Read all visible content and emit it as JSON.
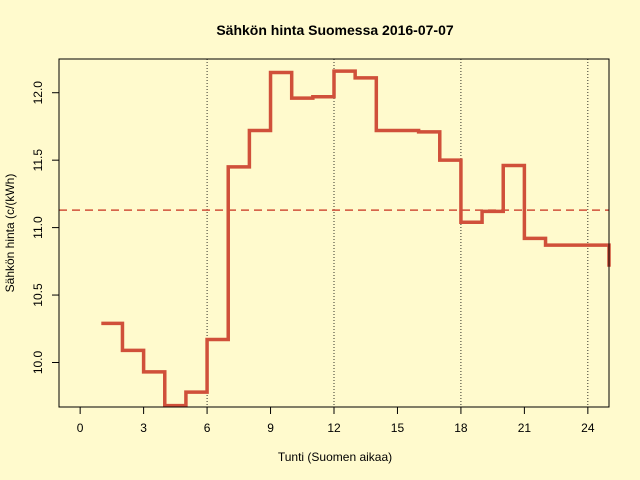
{
  "chart_data": {
    "type": "line",
    "style": "step",
    "title": "Sähkön hinta Suomessa 2016-07-07",
    "xlabel": "Tunti (Suomen aikaa)",
    "ylabel": "Sähkön hinta (c/(kWh)",
    "xlim": [
      -1,
      25
    ],
    "ylim": [
      9.67,
      12.25
    ],
    "xticks": [
      0,
      3,
      6,
      9,
      12,
      15,
      18,
      21,
      24
    ],
    "yticks": [
      10.0,
      10.5,
      11.0,
      11.5,
      12.0
    ],
    "ytick_labels": [
      "10.0",
      "10.5",
      "11.0",
      "11.5",
      "12.0"
    ],
    "vertical_reference_lines": [
      6,
      12,
      18,
      24
    ],
    "mean_line": 11.13,
    "series": [
      {
        "x": [
          1,
          2,
          3,
          4,
          5,
          6,
          7,
          8,
          9,
          10,
          11,
          12,
          13,
          14,
          15,
          16,
          17,
          18,
          19,
          20,
          21,
          22,
          23,
          24,
          25
        ],
        "values": [
          10.29,
          10.09,
          9.93,
          9.68,
          9.78,
          10.17,
          11.45,
          11.72,
          12.15,
          11.96,
          11.97,
          12.16,
          12.11,
          11.72,
          11.72,
          11.71,
          11.5,
          11.04,
          11.12,
          11.46,
          10.92,
          10.87,
          10.87,
          10.87,
          10.71
        ]
      }
    ],
    "colors": {
      "line": "#d0503a",
      "mean_line": "#d0503a",
      "background": "#fffacd",
      "axis": "#000000"
    }
  }
}
